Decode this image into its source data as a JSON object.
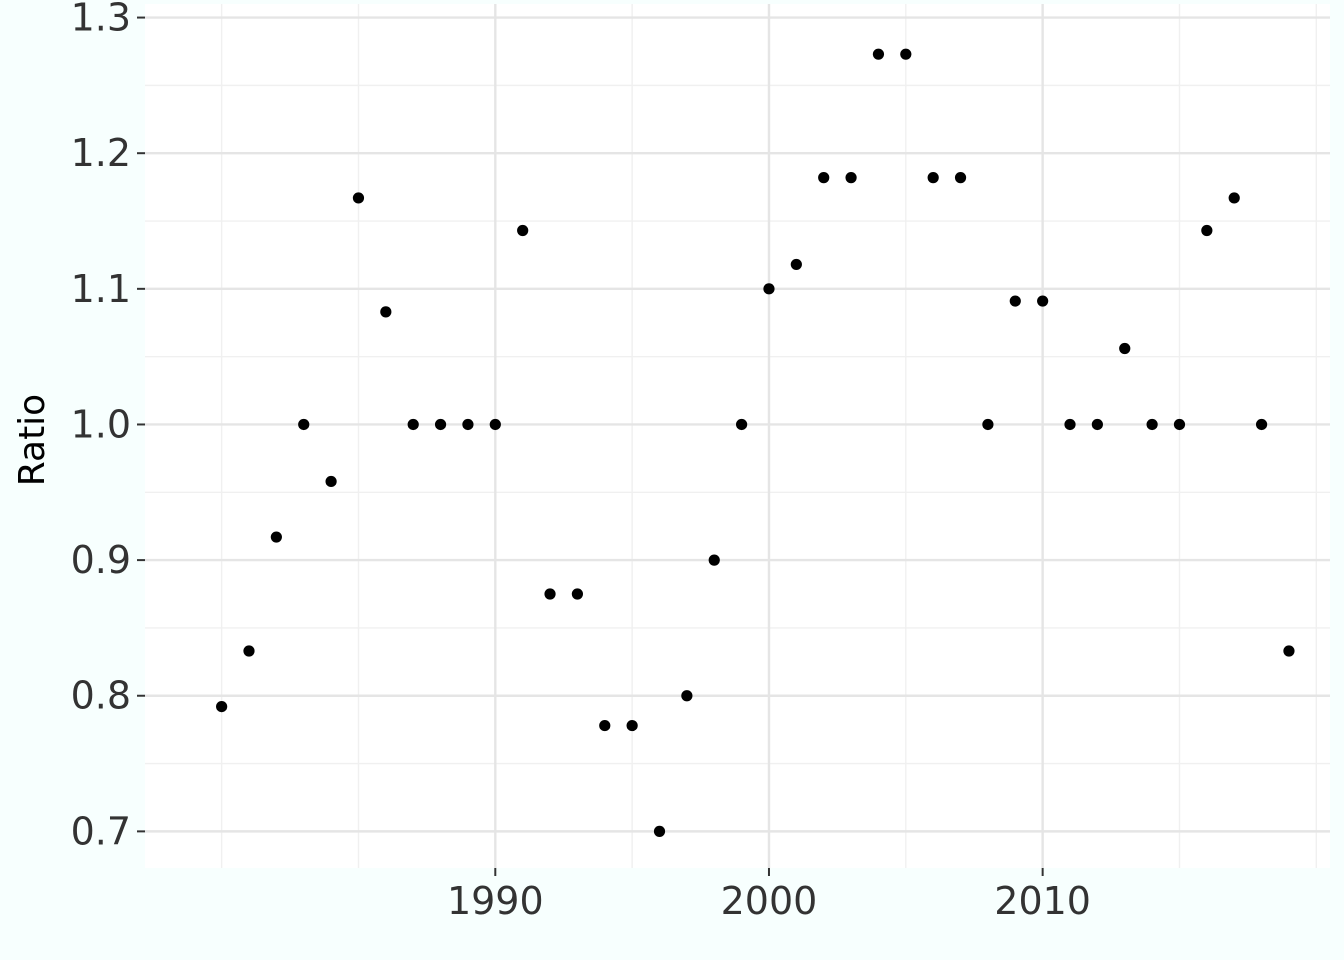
{
  "chart_data": {
    "type": "scatter",
    "title": "",
    "xlabel": "",
    "ylabel": "Ratio",
    "xlim": [
      1977.2,
      2020.5
    ],
    "ylim": [
      0.673,
      1.31
    ],
    "x_ticks": [
      1990,
      2000,
      2010
    ],
    "x_tick_labels": [
      "1990",
      "2000",
      "2010"
    ],
    "y_ticks": [
      0.7,
      0.8,
      0.9,
      1.0,
      1.1,
      1.2,
      1.3
    ],
    "y_tick_labels": [
      "0.7",
      "0.8",
      "0.9",
      "1.0",
      "1.1",
      "1.2",
      "1.3"
    ],
    "grid": true,
    "point_color": "#000000",
    "panel_background": "#ffffff",
    "plot_background": "#f7fffe",
    "grid_major_color": "#e5e5e5",
    "grid_minor_color": "#f0f0f0",
    "points": [
      {
        "x": 1980,
        "y": 0.792
      },
      {
        "x": 1981,
        "y": 0.833
      },
      {
        "x": 1982,
        "y": 0.917
      },
      {
        "x": 1983,
        "y": 1.0
      },
      {
        "x": 1984,
        "y": 0.958
      },
      {
        "x": 1985,
        "y": 1.167
      },
      {
        "x": 1986,
        "y": 1.083
      },
      {
        "x": 1987,
        "y": 1.0
      },
      {
        "x": 1988,
        "y": 1.0
      },
      {
        "x": 1989,
        "y": 1.0
      },
      {
        "x": 1990,
        "y": 1.0
      },
      {
        "x": 1991,
        "y": 1.143
      },
      {
        "x": 1992,
        "y": 0.875
      },
      {
        "x": 1993,
        "y": 0.875
      },
      {
        "x": 1994,
        "y": 0.778
      },
      {
        "x": 1995,
        "y": 0.778
      },
      {
        "x": 1996,
        "y": 0.7
      },
      {
        "x": 1997,
        "y": 0.8
      },
      {
        "x": 1998,
        "y": 0.9
      },
      {
        "x": 1999,
        "y": 1.0
      },
      {
        "x": 2000,
        "y": 1.1
      },
      {
        "x": 2001,
        "y": 1.118
      },
      {
        "x": 2002,
        "y": 1.182
      },
      {
        "x": 2003,
        "y": 1.182
      },
      {
        "x": 2004,
        "y": 1.273
      },
      {
        "x": 2005,
        "y": 1.273
      },
      {
        "x": 2006,
        "y": 1.182
      },
      {
        "x": 2007,
        "y": 1.182
      },
      {
        "x": 2008,
        "y": 1.0
      },
      {
        "x": 2009,
        "y": 1.091
      },
      {
        "x": 2010,
        "y": 1.091
      },
      {
        "x": 2011,
        "y": 1.0
      },
      {
        "x": 2012,
        "y": 1.0
      },
      {
        "x": 2013,
        "y": 1.056
      },
      {
        "x": 2014,
        "y": 1.0
      },
      {
        "x": 2015,
        "y": 1.0
      },
      {
        "x": 2016,
        "y": 1.143
      },
      {
        "x": 2017,
        "y": 1.167
      },
      {
        "x": 2018,
        "y": 1.0
      },
      {
        "x": 2019,
        "y": 0.833
      }
    ]
  }
}
